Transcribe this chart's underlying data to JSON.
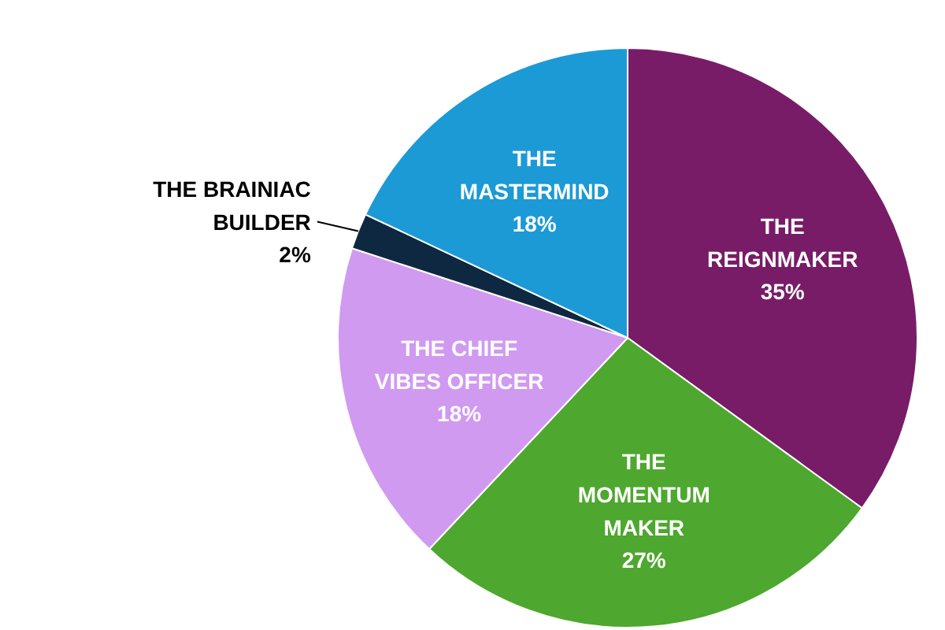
{
  "chart_data": {
    "type": "pie",
    "categories": [
      "THE\nREIGNMAKER",
      "THE\nMOMENTUM\nMAKER",
      "THE CHIEF\nVIBES OFFICER",
      "THE BRAINIAC\nBUILDER",
      "THE\nMASTERMIND"
    ],
    "values": [
      35,
      27,
      18,
      2,
      18
    ],
    "colors": [
      "#781c68",
      "#4ea72e",
      "#d09af0",
      "#0e2841",
      "#1c9ad6"
    ],
    "value_labels": [
      "35%",
      "27%",
      "18%",
      "2%",
      "18%"
    ]
  }
}
